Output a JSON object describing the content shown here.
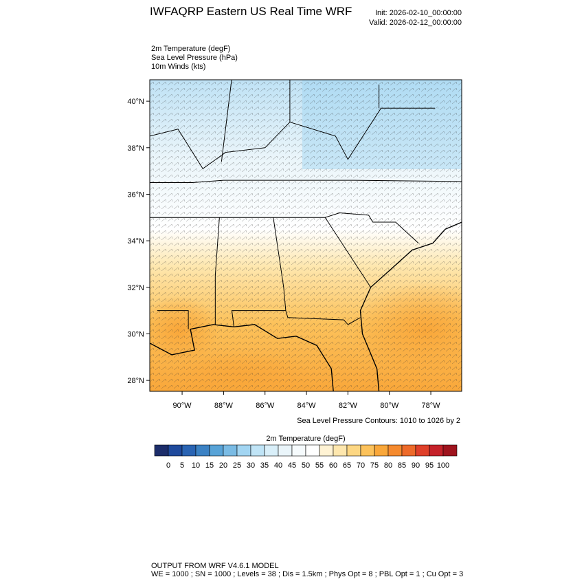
{
  "header": {
    "title": "IWFAQRP Eastern US Real Time WRF",
    "init": "Init: 2026-02-10_00:00:00",
    "valid": "Valid: 2026-02-12_00:00:00"
  },
  "fields": [
    "2m Temperature   (degF)",
    "Sea Level Pressure   (hPa)",
    "10m Winds   (kts)"
  ],
  "map": {
    "lon_range": [
      -91.56,
      -76.51
    ],
    "lat_range": [
      27.53,
      40.92
    ],
    "lat_ticks": [
      {
        "value": 28,
        "label": "28°N"
      },
      {
        "value": 30,
        "label": "30°N"
      },
      {
        "value": 32,
        "label": "32°N"
      },
      {
        "value": 34,
        "label": "34°N"
      },
      {
        "value": 36,
        "label": "36°N"
      },
      {
        "value": 38,
        "label": "38°N"
      },
      {
        "value": 40,
        "label": "40°N"
      }
    ],
    "lon_ticks": [
      {
        "value": -90,
        "label": "90°W"
      },
      {
        "value": -88,
        "label": "88°W"
      },
      {
        "value": -86,
        "label": "86°W"
      },
      {
        "value": -84,
        "label": "84°W"
      },
      {
        "value": -82,
        "label": "82°W"
      },
      {
        "value": -80,
        "label": "80°W"
      },
      {
        "value": -78,
        "label": "78°W"
      }
    ]
  },
  "contour_note": "Sea Level Pressure Contours: 1010 to 1026 by 2",
  "colorbar": {
    "title": "2m Temperature  (degF)",
    "ticks": [
      0,
      5,
      10,
      15,
      20,
      25,
      30,
      35,
      40,
      45,
      50,
      55,
      60,
      65,
      70,
      75,
      80,
      85,
      90,
      95,
      100
    ],
    "colors": [
      "#1c2d6a",
      "#1f4a9c",
      "#2a64b3",
      "#3c82c4",
      "#58a3d7",
      "#7abbe4",
      "#a2d5f2",
      "#c0e4f6",
      "#d9eff9",
      "#eaf5fa",
      "#f6fbfd",
      "#ffffff",
      "#fff3d4",
      "#fee7ae",
      "#fdd783",
      "#fcc25b",
      "#f9a73a",
      "#f58a2e",
      "#ed6a2a",
      "#df402a",
      "#c5222a",
      "#9f141e"
    ]
  },
  "footer": [
    "OUTPUT FROM WRF V4.6.1 MODEL",
    "WE = 1000 ; SN = 1000 ; Levels = 38 ; Dis = 1.5km ; Phys Opt = 8 ; PBL Opt = 1 ; Cu Opt = 3"
  ]
}
